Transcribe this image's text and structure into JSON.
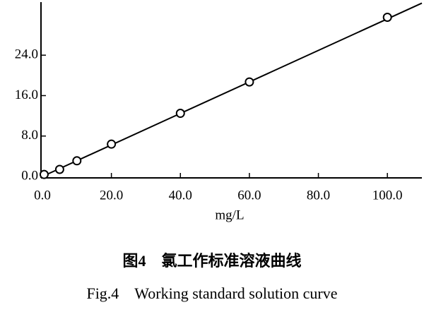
{
  "chart_data": {
    "type": "scatter",
    "x_label": "mg/L",
    "caption_cn": "图4　氯工作标准溶液曲线",
    "caption_en": "Fig.4　Working standard solution curve",
    "x": [
      0.5,
      5,
      10,
      20,
      40,
      60,
      100
    ],
    "values": [
      0.4,
      1.4,
      3.1,
      6.4,
      12.5,
      18.7,
      31.5
    ],
    "color": "#000000",
    "fit": {
      "x": [
        0,
        110
      ],
      "values": [
        0,
        34.3
      ]
    },
    "xlim": [
      0,
      110
    ],
    "ylim": [
      0,
      34.5
    ],
    "xticks": [
      {
        "value": 0,
        "label": "0.0"
      },
      {
        "value": 20,
        "label": "20.0"
      },
      {
        "value": 40,
        "label": "40.0"
      },
      {
        "value": 60,
        "label": "60.0"
      },
      {
        "value": 80,
        "label": "80.0"
      },
      {
        "value": 100,
        "label": "100.0"
      }
    ],
    "yticks": [
      {
        "value": 0,
        "label": "0.0"
      },
      {
        "value": 8,
        "label": "8.0"
      },
      {
        "value": 16,
        "label": "16.0"
      },
      {
        "value": 24,
        "label": "24.0"
      }
    ],
    "grid": false
  }
}
